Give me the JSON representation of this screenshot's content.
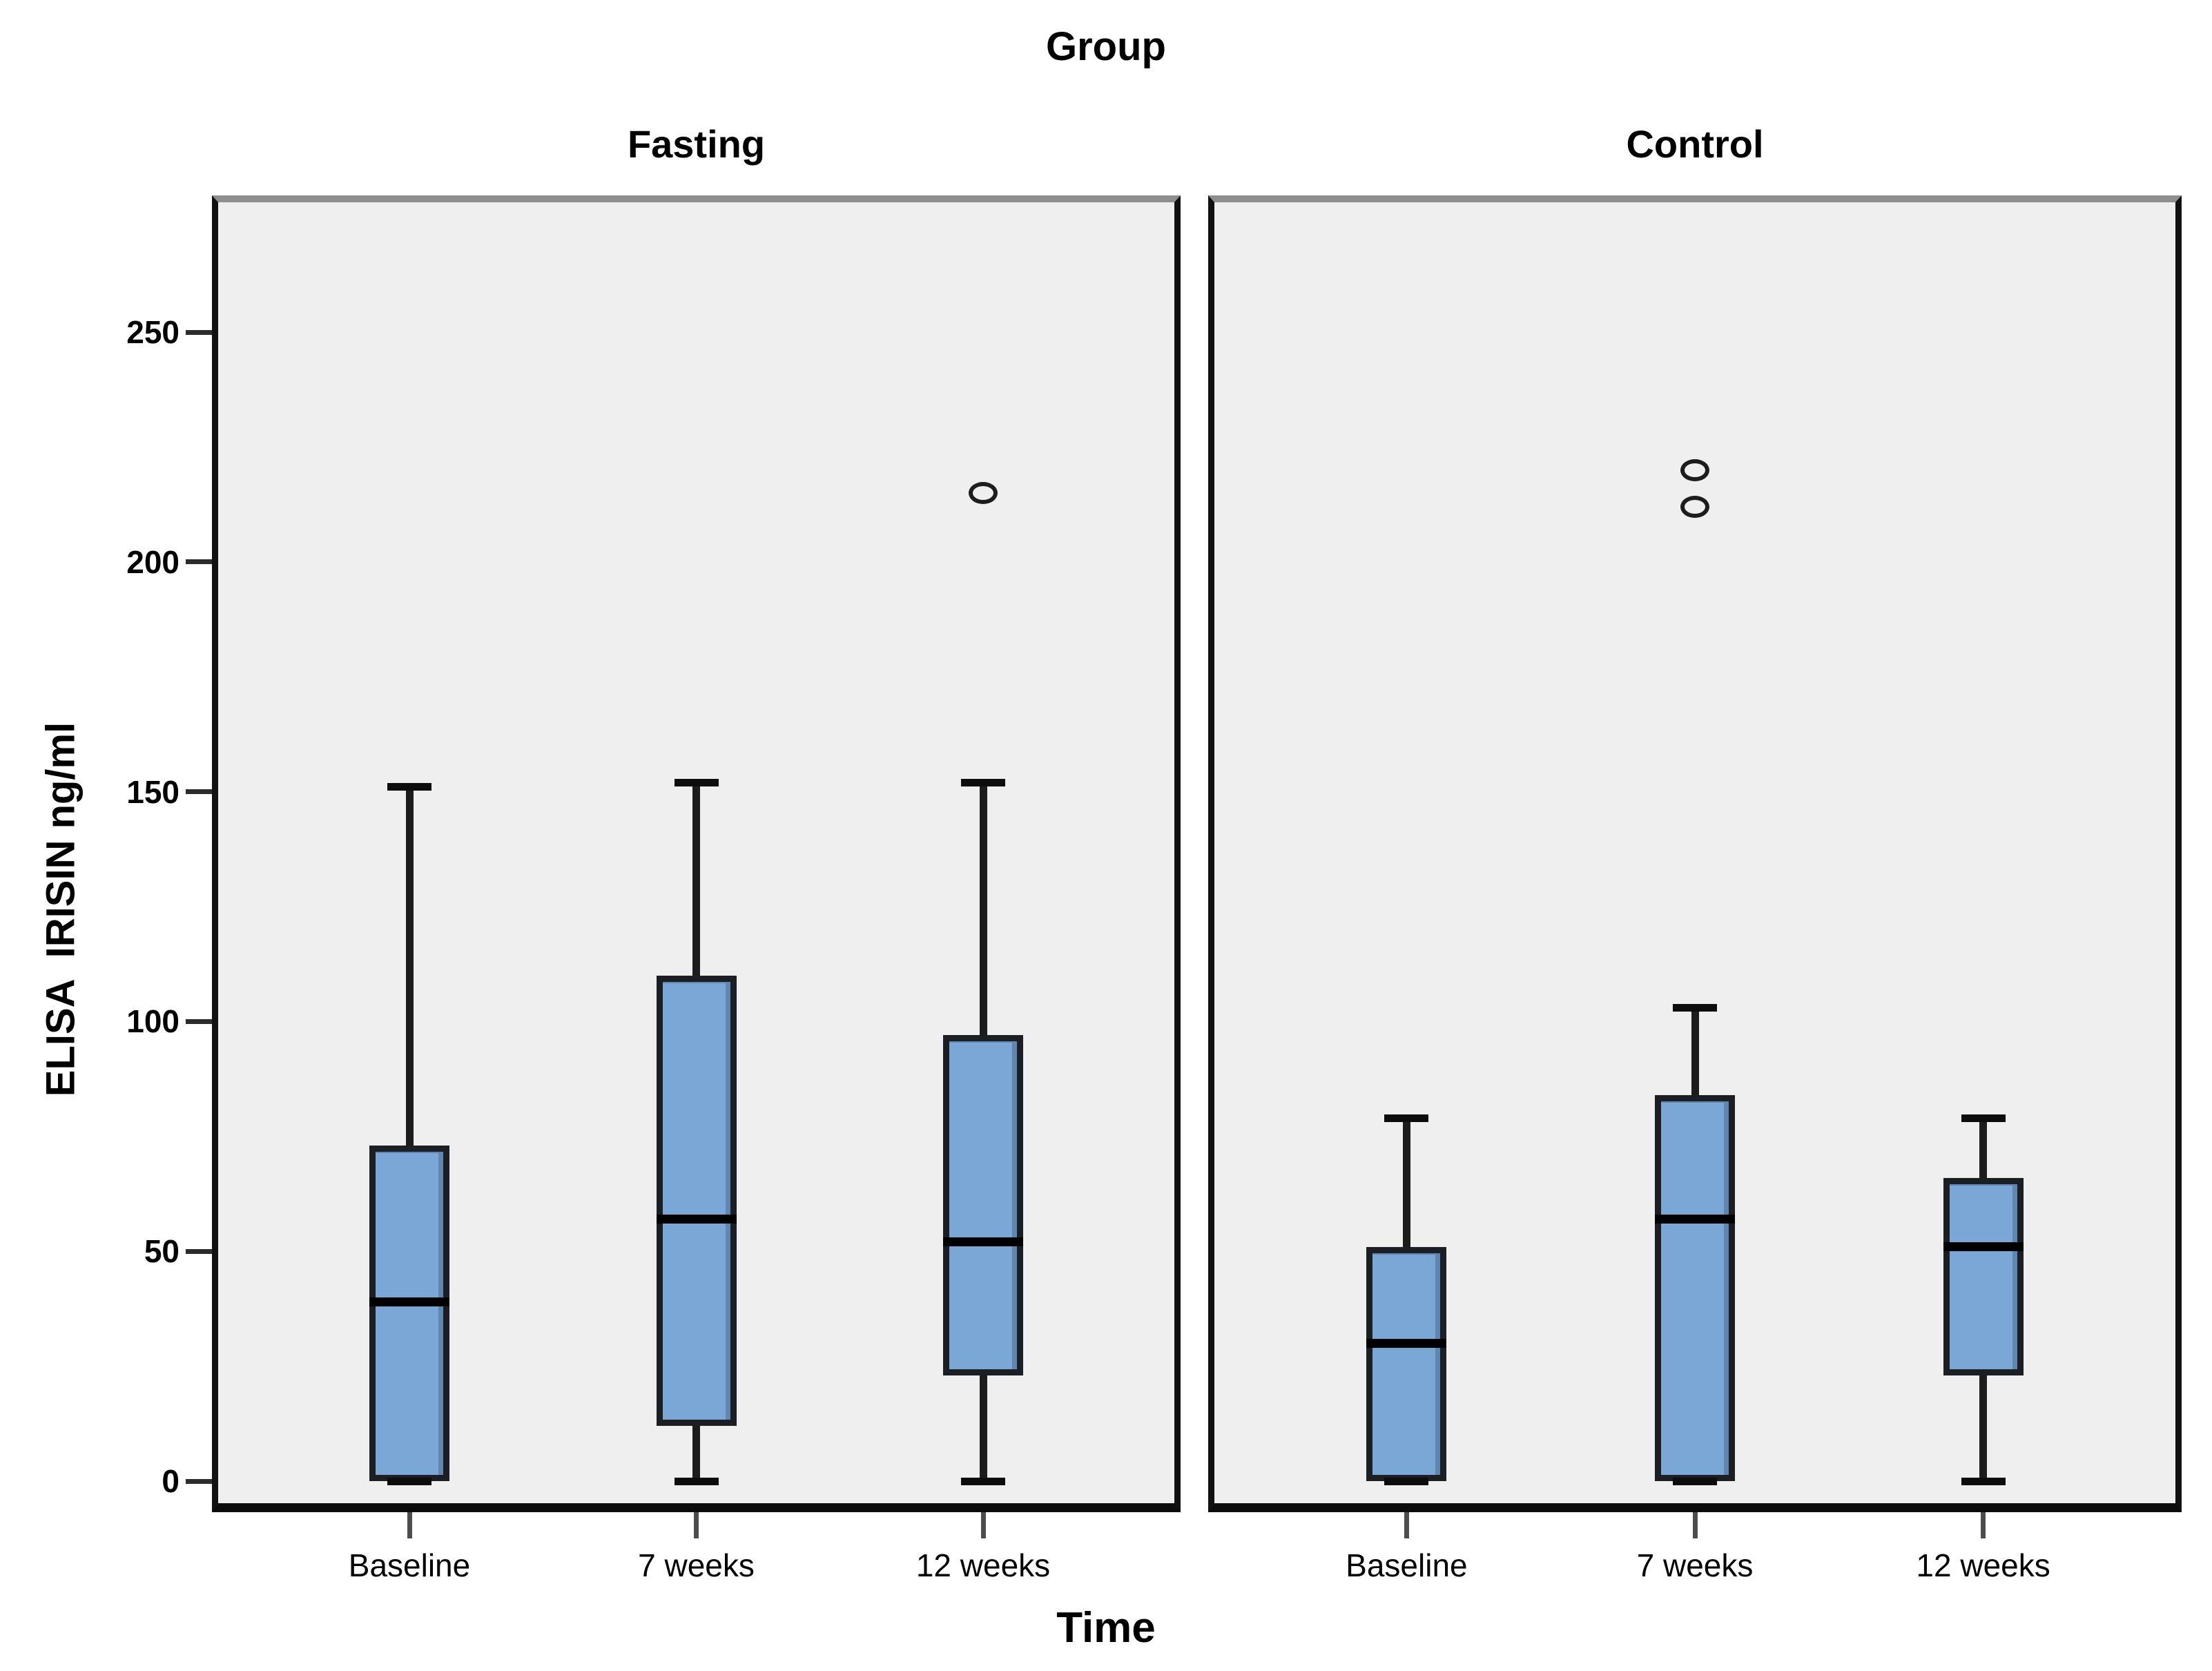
{
  "chart_data": {
    "type": "boxplot",
    "title": "Group",
    "xlabel": "Time",
    "ylabel": "ELISA  IRISIN ng/ml",
    "yticks": [
      0,
      50,
      100,
      150,
      200,
      250
    ],
    "ylim": [
      -6,
      278
    ],
    "grid": false,
    "legend": "none",
    "panel_background": "#efefef",
    "figure_background": "#ffffff",
    "box_fill": "#7aa7d6",
    "box_border": "#1b1e23",
    "categories": [
      "Baseline",
      "7 weeks",
      "12 weeks"
    ],
    "panels": [
      {
        "label": "Fasting",
        "boxes": [
          {
            "category": "Baseline",
            "whisker_low": 0,
            "q1": 0,
            "median": 39,
            "q3": 73,
            "whisker_high": 151,
            "outliers": []
          },
          {
            "category": "7 weeks",
            "whisker_low": 0,
            "q1": 12,
            "median": 57,
            "q3": 110,
            "whisker_high": 152,
            "outliers": []
          },
          {
            "category": "12 weeks",
            "whisker_low": 0,
            "q1": 23,
            "median": 52,
            "q3": 97,
            "whisker_high": 152,
            "outliers": [
              215
            ]
          }
        ]
      },
      {
        "label": "Control",
        "boxes": [
          {
            "category": "Baseline",
            "whisker_low": 0,
            "q1": 0,
            "median": 30,
            "q3": 51,
            "whisker_high": 79,
            "outliers": []
          },
          {
            "category": "7 weeks",
            "whisker_low": 0,
            "q1": 0,
            "median": 57,
            "q3": 84,
            "whisker_high": 103,
            "outliers": [
              212,
              220
            ]
          },
          {
            "category": "12 weeks",
            "whisker_low": 0,
            "q1": 23,
            "median": 51,
            "q3": 66,
            "whisker_high": 79,
            "outliers": []
          }
        ]
      }
    ]
  }
}
